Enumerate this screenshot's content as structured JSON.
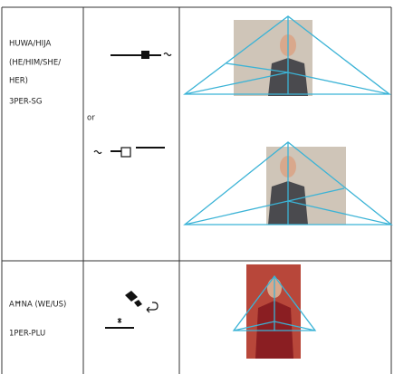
{
  "table": {
    "rows": [
      {
        "gloss": [
          "HUWA/HIJA",
          "(HE/HIM/SHE/",
          "HER)"
        ],
        "label": "3PER-SG",
        "separator": "or"
      },
      {
        "gloss": [
          "AĦNA (WE/US)"
        ],
        "label": "1PER-PLU"
      }
    ]
  }
}
